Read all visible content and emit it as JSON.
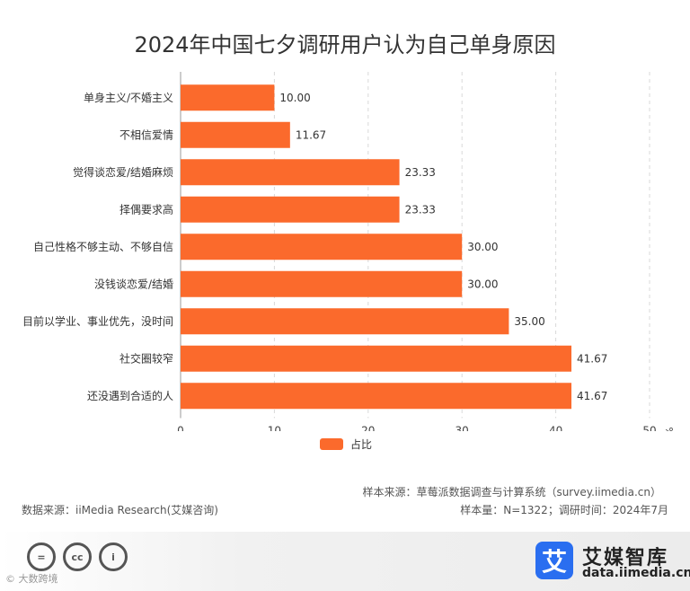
{
  "chart_data": {
    "type": "bar",
    "orientation": "horizontal",
    "title": "2024年中国七夕调研用户认为自己单身原因",
    "categories": [
      "单身主义/不婚主义",
      "不相信爱情",
      "觉得谈恋爱/结婚麻烦",
      "择偶要求高",
      "自己性格不够主动、不够自信",
      "没钱谈恋爱/结婚",
      "目前以学业、事业优先，没时间",
      "社交圈较窄",
      "还没遇到合适的人"
    ],
    "values": [
      10.0,
      11.67,
      23.33,
      23.33,
      30.0,
      30.0,
      35.0,
      41.67,
      41.67
    ],
    "value_labels": [
      "10.00",
      "11.67",
      "23.33",
      "23.33",
      "30.00",
      "30.00",
      "35.00",
      "41.67",
      "41.67"
    ],
    "xlim": [
      0,
      50
    ],
    "xticks": [
      "0",
      "10",
      "20",
      "30",
      "40",
      "50"
    ],
    "unit": "%",
    "grid": true,
    "legend": "bottom",
    "series_name": "占比",
    "color": "#fb6a2c"
  },
  "notes": {
    "source": "样本来源：草莓派数据调查与计算系统（survey.iimedia.cn）",
    "data_source": "数据来源：iiMedia Research(艾媒咨询)",
    "sample": "样本量：N=1322；调研时间：2024年7月"
  },
  "brand": {
    "logo_char": "艾",
    "name": "艾媒智库",
    "url": "data.iimedia.cn"
  },
  "watermark": "© 大数跨境",
  "cc_icons": [
    "=",
    "cc",
    "i"
  ]
}
